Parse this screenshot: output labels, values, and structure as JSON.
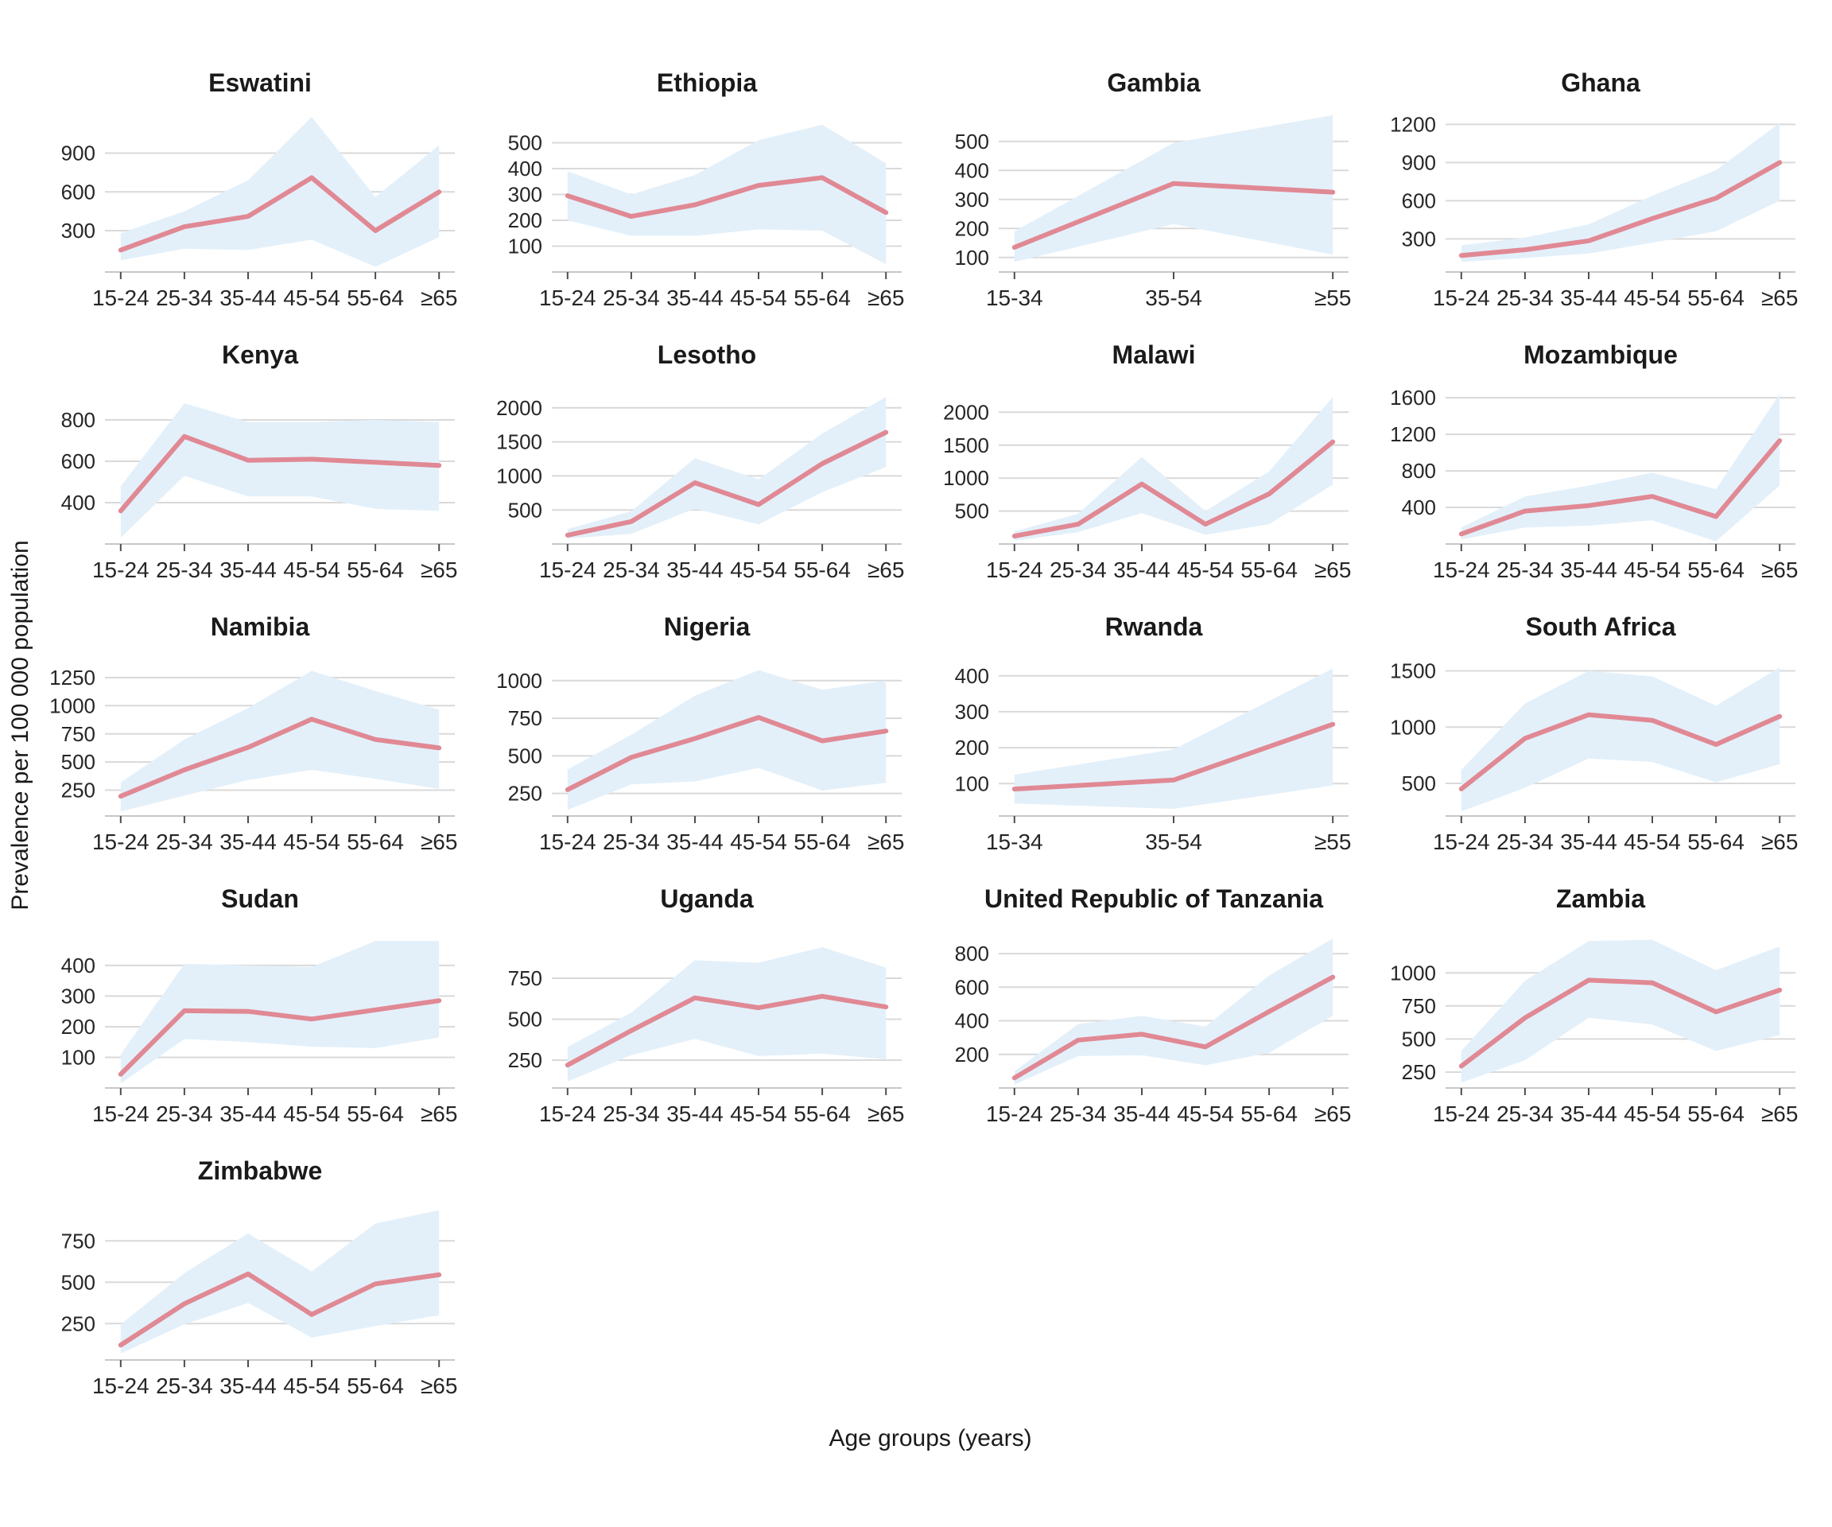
{
  "figure": {
    "ylabel": "Prevalence per 100 000 population",
    "xlabel": "Age groups (years)"
  },
  "colors": {
    "line": "#E08994",
    "band": "#E3F0FA",
    "grid": "#D9D9D9",
    "axis_line": "#C8C8C8",
    "tick_mark": "#4D4D4D",
    "tick_text": "#262626",
    "title_text": "#1A1A1A"
  },
  "layout": {
    "columns": 4,
    "rows": 5,
    "gridlines": "horizontal-major-only",
    "legend": "none",
    "band_meaning": "uncertainty interval around prevalence estimate"
  },
  "chart_data": [
    {
      "type": "line",
      "title": "Eswatini",
      "categories": [
        "15-24",
        "25-34",
        "35-44",
        "45-54",
        "55-64",
        "≥65"
      ],
      "ylim": [
        -20,
        1260
      ],
      "yticks": [
        300,
        600,
        900
      ],
      "series": [
        {
          "name": "prevalence",
          "values": [
            150,
            330,
            410,
            710,
            300,
            600
          ]
        },
        {
          "name": "lower_ci",
          "values": [
            70,
            160,
            150,
            230,
            20,
            250
          ]
        },
        {
          "name": "upper_ci",
          "values": [
            280,
            450,
            690,
            1180,
            560,
            960
          ]
        }
      ]
    },
    {
      "type": "line",
      "title": "Ethiopia",
      "categories": [
        "15-24",
        "25-34",
        "35-44",
        "45-54",
        "55-64",
        "≥65"
      ],
      "ylim": [
        0,
        640
      ],
      "yticks": [
        100,
        200,
        300,
        400,
        500
      ],
      "series": [
        {
          "name": "prevalence",
          "values": [
            295,
            215,
            260,
            335,
            365,
            230
          ]
        },
        {
          "name": "lower_ci",
          "values": [
            200,
            140,
            140,
            165,
            160,
            30
          ]
        },
        {
          "name": "upper_ci",
          "values": [
            390,
            300,
            375,
            510,
            570,
            420
          ]
        }
      ]
    },
    {
      "type": "line",
      "title": "Gambia",
      "categories": [
        "15-34",
        "35-54",
        "≥55"
      ],
      "ylim": [
        50,
        620
      ],
      "yticks": [
        100,
        200,
        300,
        400,
        500
      ],
      "series": [
        {
          "name": "prevalence",
          "values": [
            135,
            355,
            325
          ]
        },
        {
          "name": "lower_ci",
          "values": [
            85,
            215,
            110
          ]
        },
        {
          "name": "upper_ci",
          "values": [
            190,
            495,
            590
          ]
        }
      ]
    },
    {
      "type": "line",
      "title": "Ghana",
      "categories": [
        "15-24",
        "25-34",
        "35-44",
        "45-54",
        "55-64",
        "≥65"
      ],
      "ylim": [
        40,
        1340
      ],
      "yticks": [
        300,
        600,
        900,
        1200
      ],
      "series": [
        {
          "name": "prevalence",
          "values": [
            170,
            215,
            285,
            460,
            620,
            900
          ]
        },
        {
          "name": "lower_ci",
          "values": [
            120,
            150,
            185,
            270,
            360,
            600
          ]
        },
        {
          "name": "upper_ci",
          "values": [
            250,
            310,
            415,
            640,
            840,
            1210
          ]
        }
      ]
    },
    {
      "type": "line",
      "title": "Kenya",
      "categories": [
        "15-24",
        "25-34",
        "35-44",
        "45-54",
        "55-64",
        "≥65"
      ],
      "ylim": [
        200,
        1000
      ],
      "yticks": [
        400,
        600,
        800
      ],
      "series": [
        {
          "name": "prevalence",
          "values": [
            360,
            720,
            605,
            610,
            595,
            580
          ]
        },
        {
          "name": "lower_ci",
          "values": [
            230,
            530,
            430,
            430,
            370,
            360
          ]
        },
        {
          "name": "upper_ci",
          "values": [
            480,
            880,
            790,
            790,
            800,
            790
          ]
        }
      ]
    },
    {
      "type": "line",
      "title": "Lesotho",
      "categories": [
        "15-24",
        "25-34",
        "35-44",
        "45-54",
        "55-64",
        "≥65"
      ],
      "ylim": [
        0,
        2430
      ],
      "yticks": [
        500,
        1000,
        1500,
        2000
      ],
      "series": [
        {
          "name": "prevalence",
          "values": [
            130,
            330,
            900,
            580,
            1180,
            1640
          ]
        },
        {
          "name": "lower_ci",
          "values": [
            80,
            150,
            520,
            290,
            760,
            1130
          ]
        },
        {
          "name": "upper_ci",
          "values": [
            220,
            480,
            1260,
            950,
            1620,
            2160
          ]
        }
      ]
    },
    {
      "type": "line",
      "title": "Malawi",
      "categories": [
        "15-24",
        "25-34",
        "35-44",
        "45-54",
        "55-64",
        "≥65"
      ],
      "ylim": [
        0,
        2510
      ],
      "yticks": [
        500,
        1000,
        1500,
        2000
      ],
      "series": [
        {
          "name": "prevalence",
          "values": [
            120,
            300,
            910,
            300,
            760,
            1550
          ]
        },
        {
          "name": "lower_ci",
          "values": [
            50,
            180,
            470,
            140,
            300,
            900
          ]
        },
        {
          "name": "upper_ci",
          "values": [
            190,
            460,
            1320,
            500,
            1100,
            2230
          ]
        }
      ]
    },
    {
      "type": "line",
      "title": "Mozambique",
      "categories": [
        "15-24",
        "25-34",
        "35-44",
        "45-54",
        "55-64",
        "≥65"
      ],
      "ylim": [
        0,
        1810
      ],
      "yticks": [
        400,
        800,
        1200,
        1600
      ],
      "series": [
        {
          "name": "prevalence",
          "values": [
            110,
            360,
            420,
            520,
            300,
            1130
          ]
        },
        {
          "name": "lower_ci",
          "values": [
            50,
            180,
            200,
            260,
            30,
            640
          ]
        },
        {
          "name": "upper_ci",
          "values": [
            180,
            520,
            640,
            780,
            600,
            1640
          ]
        }
      ]
    },
    {
      "type": "line",
      "title": "Namibia",
      "categories": [
        "15-24",
        "25-34",
        "35-44",
        "45-54",
        "55-64",
        "≥65"
      ],
      "ylim": [
        20,
        1490
      ],
      "yticks": [
        250,
        500,
        750,
        1000,
        1250
      ],
      "series": [
        {
          "name": "prevalence",
          "values": [
            195,
            430,
            630,
            880,
            700,
            625
          ]
        },
        {
          "name": "lower_ci",
          "values": [
            60,
            200,
            340,
            430,
            350,
            260
          ]
        },
        {
          "name": "upper_ci",
          "values": [
            320,
            700,
            980,
            1310,
            1130,
            965
          ]
        }
      ]
    },
    {
      "type": "line",
      "title": "Nigeria",
      "categories": [
        "15-24",
        "25-34",
        "35-44",
        "45-54",
        "55-64",
        "≥65"
      ],
      "ylim": [
        100,
        1200
      ],
      "yticks": [
        250,
        500,
        750,
        1000
      ],
      "series": [
        {
          "name": "prevalence",
          "values": [
            275,
            490,
            615,
            755,
            600,
            665
          ]
        },
        {
          "name": "lower_ci",
          "values": [
            140,
            310,
            330,
            420,
            270,
            320
          ]
        },
        {
          "name": "upper_ci",
          "values": [
            410,
            640,
            900,
            1070,
            940,
            1000
          ]
        }
      ]
    },
    {
      "type": "line",
      "title": "Rwanda",
      "categories": [
        "15-34",
        "35-54",
        "≥55"
      ],
      "ylim": [
        10,
        470
      ],
      "yticks": [
        100,
        200,
        300,
        400
      ],
      "series": [
        {
          "name": "prevalence",
          "values": [
            85,
            110,
            265
          ]
        },
        {
          "name": "lower_ci",
          "values": [
            45,
            30,
            95
          ]
        },
        {
          "name": "upper_ci",
          "values": [
            125,
            195,
            420
          ]
        }
      ]
    },
    {
      "type": "line",
      "title": "South Africa",
      "categories": [
        "15-24",
        "25-34",
        "35-44",
        "45-54",
        "55-64",
        "≥65"
      ],
      "ylim": [
        210,
        1680
      ],
      "yticks": [
        500,
        1000,
        1500
      ],
      "series": [
        {
          "name": "prevalence",
          "values": [
            450,
            900,
            1110,
            1060,
            845,
            1095
          ]
        },
        {
          "name": "lower_ci",
          "values": [
            250,
            460,
            720,
            690,
            510,
            670
          ]
        },
        {
          "name": "upper_ci",
          "values": [
            620,
            1210,
            1500,
            1450,
            1190,
            1530
          ]
        }
      ]
    },
    {
      "type": "line",
      "title": "Sudan",
      "categories": [
        "15-24",
        "25-34",
        "35-44",
        "45-54",
        "55-64",
        "≥65"
      ],
      "ylim": [
        0,
        540
      ],
      "yticks": [
        100,
        200,
        300,
        400
      ],
      "series": [
        {
          "name": "prevalence",
          "values": [
            45,
            252,
            250,
            225,
            255,
            285
          ]
        },
        {
          "name": "lower_ci",
          "values": [
            15,
            160,
            150,
            135,
            130,
            165
          ]
        },
        {
          "name": "upper_ci",
          "values": [
            110,
            405,
            400,
            395,
            480,
            480
          ]
        }
      ]
    },
    {
      "type": "line",
      "title": "Uganda",
      "categories": [
        "15-24",
        "25-34",
        "35-44",
        "45-54",
        "55-64",
        "≥65"
      ],
      "ylim": [
        80,
        1090
      ],
      "yticks": [
        250,
        500,
        750
      ],
      "series": [
        {
          "name": "prevalence",
          "values": [
            220,
            430,
            630,
            570,
            640,
            575
          ]
        },
        {
          "name": "lower_ci",
          "values": [
            120,
            280,
            380,
            275,
            290,
            255
          ]
        },
        {
          "name": "upper_ci",
          "values": [
            330,
            540,
            860,
            845,
            940,
            815
          ]
        }
      ]
    },
    {
      "type": "line",
      "title": "United Republic of Tanzania",
      "categories": [
        "15-24",
        "25-34",
        "35-44",
        "45-54",
        "55-64",
        "≥65"
      ],
      "ylim": [
        0,
        985
      ],
      "yticks": [
        200,
        400,
        600,
        800
      ],
      "series": [
        {
          "name": "prevalence",
          "values": [
            60,
            285,
            320,
            245,
            455,
            660
          ]
        },
        {
          "name": "lower_ci",
          "values": [
            20,
            190,
            195,
            135,
            210,
            430
          ]
        },
        {
          "name": "upper_ci",
          "values": [
            100,
            380,
            430,
            365,
            670,
            890
          ]
        }
      ]
    },
    {
      "type": "line",
      "title": "Zambia",
      "categories": [
        "15-24",
        "25-34",
        "35-44",
        "45-54",
        "55-64",
        "≥65"
      ],
      "ylim": [
        130,
        1380
      ],
      "yticks": [
        250,
        500,
        750,
        1000
      ],
      "series": [
        {
          "name": "prevalence",
          "values": [
            295,
            660,
            945,
            925,
            705,
            870
          ]
        },
        {
          "name": "lower_ci",
          "values": [
            170,
            340,
            660,
            610,
            410,
            530
          ]
        },
        {
          "name": "upper_ci",
          "values": [
            410,
            940,
            1240,
            1250,
            1020,
            1200
          ]
        }
      ]
    },
    {
      "type": "line",
      "title": "Zimbabwe",
      "categories": [
        "15-24",
        "25-34",
        "35-44",
        "45-54",
        "55-64",
        "≥65"
      ],
      "ylim": [
        30,
        1030
      ],
      "yticks": [
        250,
        500,
        750
      ],
      "series": [
        {
          "name": "prevalence",
          "values": [
            120,
            370,
            550,
            305,
            490,
            545
          ]
        },
        {
          "name": "lower_ci",
          "values": [
            70,
            245,
            375,
            165,
            235,
            300
          ]
        },
        {
          "name": "upper_ci",
          "values": [
            245,
            555,
            795,
            565,
            855,
            935
          ]
        }
      ]
    }
  ]
}
